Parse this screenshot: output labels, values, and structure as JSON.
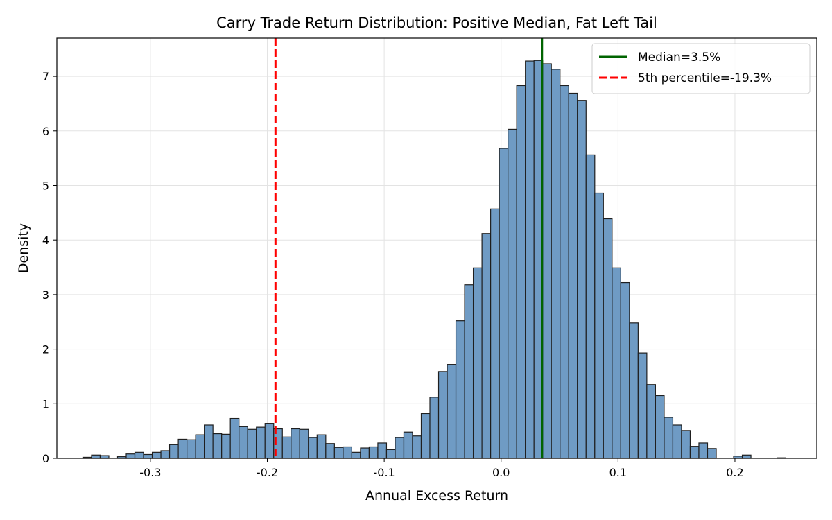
{
  "chart_data": {
    "type": "bar",
    "title": "Carry Trade Return Distribution: Positive Median, Fat Left Tail",
    "xlabel": "Annual Excess Return",
    "ylabel": "Density",
    "xlim": [
      -0.38,
      0.27
    ],
    "ylim": [
      0,
      7.7
    ],
    "xticks": [
      -0.3,
      -0.2,
      -0.1,
      0.0,
      0.1,
      0.2
    ],
    "xtick_labels": [
      "-0.3",
      "-0.2",
      "-0.1",
      "0.0",
      "0.1",
      "0.2"
    ],
    "yticks": [
      0,
      1,
      2,
      3,
      4,
      5,
      6,
      7
    ],
    "ytick_labels": [
      "0",
      "1",
      "2",
      "3",
      "4",
      "5",
      "6",
      "7"
    ],
    "grid": true,
    "legend_position": "top-right",
    "bar_color": "#6f9bc4",
    "bar_edge_color": "#1f1f1f",
    "bin_start": -0.3578,
    "bin_width": 0.007422,
    "densities": [
      0.02,
      0.06,
      0.05,
      0.0,
      0.03,
      0.08,
      0.11,
      0.07,
      0.11,
      0.14,
      0.25,
      0.35,
      0.34,
      0.43,
      0.61,
      0.45,
      0.44,
      0.73,
      0.58,
      0.53,
      0.57,
      0.64,
      0.54,
      0.39,
      0.54,
      0.53,
      0.38,
      0.43,
      0.27,
      0.2,
      0.21,
      0.11,
      0.19,
      0.21,
      0.28,
      0.16,
      0.38,
      0.48,
      0.41,
      0.82,
      1.12,
      1.59,
      1.72,
      2.52,
      3.18,
      3.49,
      4.12,
      4.57,
      5.68,
      6.03,
      6.83,
      7.28,
      7.29,
      7.23,
      7.13,
      6.83,
      6.69,
      6.56,
      5.56,
      4.86,
      4.39,
      3.49,
      3.22,
      2.48,
      1.93,
      1.35,
      1.15,
      0.75,
      0.61,
      0.51,
      0.22,
      0.28,
      0.18,
      0.0,
      0.0,
      0.04,
      0.06,
      0.0,
      0.0,
      0.0,
      0.01
    ],
    "reference_lines": [
      {
        "name": "Median=3.5%",
        "x": 0.035,
        "color": "#006400",
        "style": "solid"
      },
      {
        "name": "5th percentile=-19.3%",
        "x": -0.193,
        "color": "#ff0000",
        "style": "dashed"
      }
    ]
  }
}
